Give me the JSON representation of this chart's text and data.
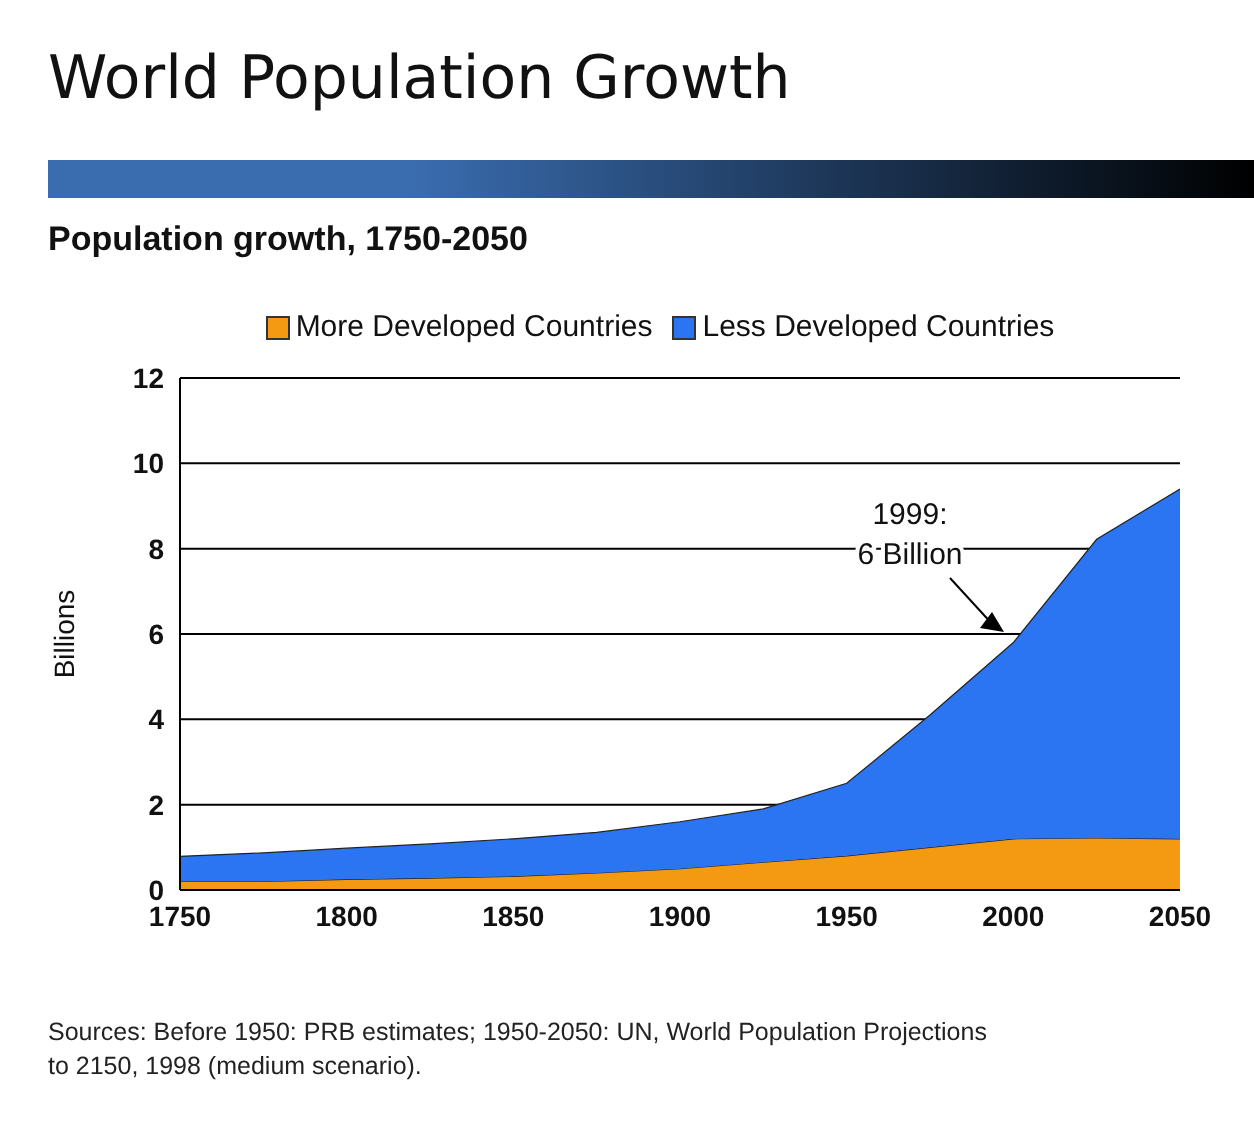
{
  "chart_data": {
    "type": "area",
    "title": "World Population Growth",
    "subtitle": "Population growth, 1750-2050",
    "ylabel": "Billions",
    "stacked": true,
    "legend": "top",
    "grid": "y",
    "x": [
      1750,
      1775,
      1800,
      1825,
      1850,
      1875,
      1900,
      1925,
      1950,
      1975,
      2000,
      2025,
      2050
    ],
    "series": [
      {
        "name": "More Developed Countries",
        "color": "#f39a12",
        "values": [
          0.2,
          0.2,
          0.25,
          0.28,
          0.32,
          0.4,
          0.5,
          0.65,
          0.8,
          1.0,
          1.2,
          1.22,
          1.2
        ]
      },
      {
        "name": "Less Developed Countries",
        "color": "#2b74f2",
        "values": [
          0.59,
          0.67,
          0.73,
          0.8,
          0.88,
          0.95,
          1.1,
          1.25,
          1.7,
          3.1,
          4.6,
          7.0,
          8.2
        ]
      }
    ],
    "xlim": [
      1750,
      2050
    ],
    "xticks": [
      1750,
      1800,
      1850,
      1900,
      1950,
      2000,
      2050
    ],
    "ylim": [
      0,
      12
    ],
    "yticks": [
      0,
      2,
      4,
      6,
      8,
      10,
      12
    ],
    "annotations": [
      {
        "text": "1999:\n6 Billion",
        "x": 1999,
        "y": 6
      },
      "Sources: Before 1950: PRB estimates; 1950-2050: UN, World Population Projections to 2150, 1998 (medium scenario)."
    ]
  }
}
